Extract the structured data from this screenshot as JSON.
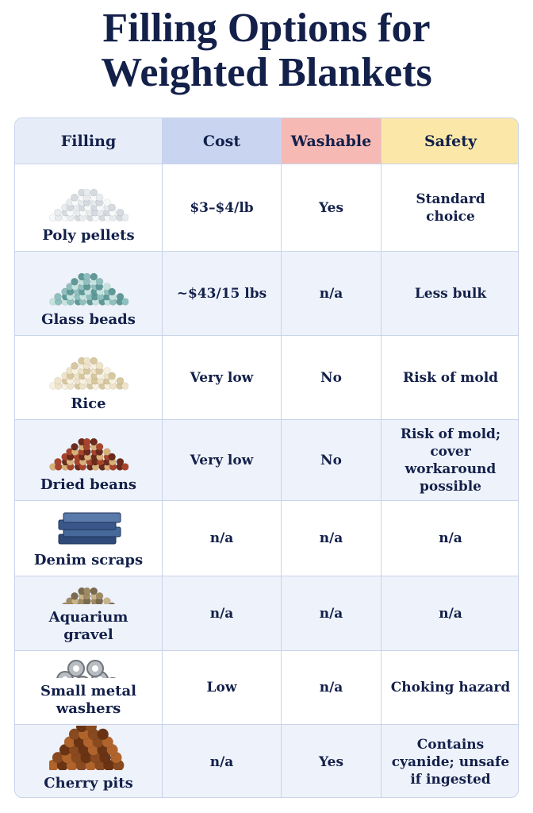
{
  "title": "Filling Options for Weighted Blankets",
  "table": {
    "headers": [
      "Filling",
      "Cost",
      "Washable",
      "Safety"
    ],
    "rows": [
      [
        "Poly pellets",
        "$3–$4/lb",
        "Yes",
        "Standard choice"
      ],
      [
        "Glass beads",
        "~$43/15 lbs",
        "n/a",
        "Less bulk"
      ],
      [
        "Rice",
        "Very low",
        "No",
        "Risk of mold"
      ],
      [
        "Dried beans",
        "Very low",
        "No",
        "Risk of mold; cover workaround possible"
      ],
      [
        "Denim scraps",
        "n/a",
        "n/a",
        "n/a"
      ],
      [
        "Aquarium gravel",
        "n/a",
        "n/a",
        "n/a"
      ],
      [
        "Small metal washers",
        "Low",
        "n/a",
        "Choking hazard"
      ],
      [
        "Cherry pits",
        "n/a",
        "Yes",
        "Contains cyanide; unsafe if ingested"
      ]
    ]
  }
}
